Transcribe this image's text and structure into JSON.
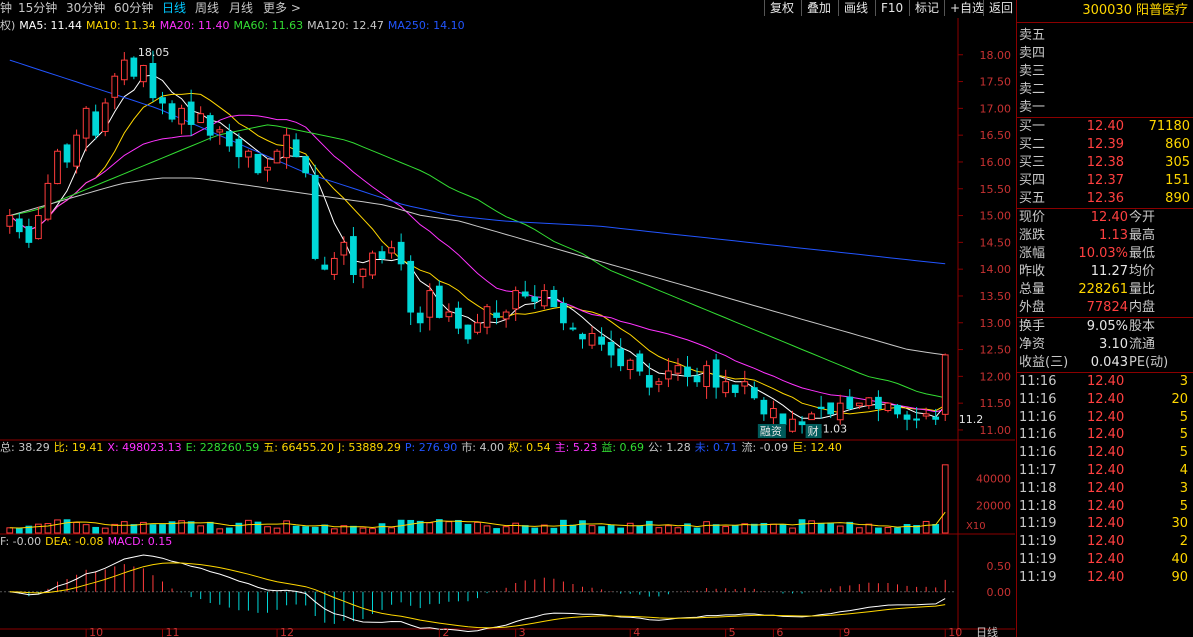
{
  "toolbar": {
    "periods": [
      {
        "label": "钟",
        "active": false
      },
      {
        "label": "15分钟",
        "active": false
      },
      {
        "label": "30分钟",
        "active": false
      },
      {
        "label": "60分钟",
        "active": false
      },
      {
        "label": "日线",
        "active": true
      },
      {
        "label": "周线",
        "active": false
      },
      {
        "label": "月线",
        "active": false
      },
      {
        "label": "更多 >",
        "active": false
      }
    ],
    "buttons": [
      "复权",
      "叠加",
      "画线",
      "F10",
      "标记",
      "+自选",
      "返回"
    ]
  },
  "legend_ma": [
    {
      "text": "权)",
      "color": "#c8c8c8"
    },
    {
      "text": "MA5: 11.44",
      "color": "#ffffff"
    },
    {
      "text": "MA10: 11.34",
      "color": "#ffd700"
    },
    {
      "text": "MA20: 11.40",
      "color": "#ff33ff"
    },
    {
      "text": "MA60: 11.63",
      "color": "#33dd33"
    },
    {
      "text": "MA120: 12.47",
      "color": "#c8c8c8"
    },
    {
      "text": "MA250: 14.10",
      "color": "#2255ff"
    }
  ],
  "legend_vol": [
    {
      "text": "总: 38.29",
      "color": "#c8c8c8"
    },
    {
      "text": "比: 19.41",
      "color": "#ffd700"
    },
    {
      "text": "X: 498023.13",
      "color": "#ff33ff"
    },
    {
      "text": "E: 228260.59",
      "color": "#33dd33"
    },
    {
      "text": "五: 66455.20",
      "color": "#ffd700"
    },
    {
      "text": "J: 53889.29",
      "color": "#ffd700"
    },
    {
      "text": "P: 276.90",
      "color": "#2255ff"
    },
    {
      "text": "市: 4.00",
      "color": "#c8c8c8"
    },
    {
      "text": "权: 0.54",
      "color": "#ffd700"
    },
    {
      "text": "主: 5.23",
      "color": "#ff33ff"
    },
    {
      "text": "益: 0.69",
      "color": "#33dd33"
    },
    {
      "text": "公: 1.28",
      "color": "#c8c8c8"
    },
    {
      "text": "未: 0.71",
      "color": "#2255ff"
    },
    {
      "text": "流: -0.09",
      "color": "#c8c8c8"
    },
    {
      "text": "巨: 12.40",
      "color": "#ffd700"
    }
  ],
  "legend_macd": [
    {
      "text": "F: -0.00",
      "color": "#c8c8c8"
    },
    {
      "text": "DEA: -0.08",
      "color": "#ffd700"
    },
    {
      "text": "MACD: 0.15",
      "color": "#ff33ff"
    }
  ],
  "chart_data": {
    "type": "candlestick",
    "price_axis": {
      "ticks": [
        "18.00",
        "17.50",
        "17.00",
        "16.50",
        "16.00",
        "15.50",
        "15.00",
        "14.50",
        "14.00",
        "13.50",
        "13.00",
        "12.50",
        "12.00",
        "11.50",
        "11.00"
      ],
      "min": 10.85,
      "max": 18.35
    },
    "volume_axis": {
      "ticks": [
        "40000",
        "20000"
      ],
      "unit": "X10"
    },
    "macd_axis": {
      "ticks": [
        "0.50",
        "0.00"
      ],
      "min": -0.7,
      "max": 0.75
    },
    "month_labels": [
      {
        "label": "10",
        "idx": 8
      },
      {
        "label": "11",
        "idx": 16
      },
      {
        "label": "12",
        "idx": 28
      },
      {
        "label": "2",
        "idx": 45
      },
      {
        "label": "3",
        "idx": 53
      },
      {
        "label": "4",
        "idx": 65
      },
      {
        "label": "5",
        "idx": 75
      },
      {
        "label": "6",
        "idx": 80
      },
      {
        "label": "9",
        "idx": 87
      },
      {
        "label": "10",
        "idx": 98
      }
    ],
    "annotations": [
      {
        "text": "18.05",
        "idx": 13,
        "value": 18.05
      },
      {
        "text": "11.03",
        "idx": 84,
        "value": 11.03
      },
      {
        "text": "11.2",
        "idx": 99,
        "value": 11.2
      },
      {
        "text": "融资",
        "idx": 79
      },
      {
        "text": "财",
        "idx": 84
      }
    ],
    "closes": [
      15.0,
      14.7,
      14.5,
      15.0,
      15.6,
      16.2,
      16.0,
      16.5,
      17.0,
      16.5,
      17.1,
      17.6,
      17.9,
      17.6,
      17.8,
      17.2,
      17.1,
      16.8,
      17.0,
      16.7,
      16.9,
      16.5,
      16.6,
      16.3,
      16.1,
      16.2,
      15.8,
      15.9,
      16.2,
      16.5,
      16.1,
      15.8,
      14.2,
      14.0,
      14.2,
      14.5,
      13.9,
      14.0,
      14.3,
      14.2,
      14.4,
      14.1,
      13.2,
      13.0,
      13.6,
      13.1,
      13.2,
      12.9,
      12.7,
      13.0,
      13.3,
      13.1,
      13.2,
      13.6,
      13.5,
      13.4,
      13.6,
      13.3,
      13.0,
      12.9,
      12.7,
      12.8,
      12.6,
      12.4,
      12.2,
      12.3,
      12.1,
      11.8,
      11.9,
      12.1,
      12.2,
      12.0,
      11.9,
      12.2,
      11.8,
      11.9,
      11.7,
      11.9,
      11.6,
      11.3,
      11.4,
      11.1,
      11.2,
      11.1,
      11.3,
      11.4,
      11.3,
      11.5,
      11.4,
      11.5,
      11.6,
      11.4,
      11.5,
      11.3,
      11.2,
      11.2,
      11.3,
      11.2,
      12.4
    ],
    "ma": [
      {
        "name": "MA5",
        "color": "#ffffff"
      },
      {
        "name": "MA10",
        "color": "#ffd700"
      },
      {
        "name": "MA20",
        "color": "#ff33ff"
      },
      {
        "name": "MA60",
        "color": "#33dd33",
        "values": [
          15.0,
          15.1,
          15.3,
          15.5,
          15.7,
          15.9,
          16.1,
          16.3,
          16.5,
          16.6,
          16.7,
          16.6,
          16.5,
          16.4,
          16.2,
          16.0,
          15.8,
          15.5,
          15.3,
          15.0,
          14.8,
          14.5,
          14.3,
          14.0,
          13.8,
          13.6,
          13.4,
          13.2,
          13.0,
          12.8,
          12.6,
          12.4,
          12.2,
          12.0,
          11.9,
          11.7,
          11.6
        ]
      },
      {
        "name": "MA120",
        "color": "#c8c8c8",
        "values": [
          15.0,
          15.2,
          15.4,
          15.6,
          15.7,
          15.7,
          15.6,
          15.5,
          15.4,
          15.3,
          15.2,
          15.0,
          14.9,
          14.7,
          14.5,
          14.3,
          14.1,
          13.9,
          13.7,
          13.5,
          13.3,
          13.1,
          12.9,
          12.7,
          12.5,
          12.4
        ]
      },
      {
        "name": "MA250",
        "color": "#2255ff",
        "values": [
          17.9,
          17.6,
          17.3,
          17.0,
          16.6,
          16.2,
          15.8,
          15.5,
          15.2,
          15.0,
          14.9,
          14.85,
          14.8,
          14.7,
          14.6,
          14.5,
          14.4,
          14.3,
          14.2,
          14.1
        ]
      }
    ]
  },
  "stock": {
    "code": "300030",
    "name": "阳普医疗"
  },
  "order_book": {
    "asks": [
      {
        "label": "卖五",
        "price": "",
        "vol": ""
      },
      {
        "label": "卖四",
        "price": "",
        "vol": ""
      },
      {
        "label": "卖三",
        "price": "",
        "vol": ""
      },
      {
        "label": "卖二",
        "price": "",
        "vol": ""
      },
      {
        "label": "卖一",
        "price": "",
        "vol": ""
      }
    ],
    "bids": [
      {
        "label": "买一",
        "price": "12.40",
        "vol": "71180"
      },
      {
        "label": "买二",
        "price": "12.39",
        "vol": "860"
      },
      {
        "label": "买三",
        "price": "12.38",
        "vol": "305"
      },
      {
        "label": "买四",
        "price": "12.37",
        "vol": "151"
      },
      {
        "label": "买五",
        "price": "12.36",
        "vol": "890"
      }
    ]
  },
  "quote": [
    {
      "label": "现价",
      "value": "12.40",
      "color": "#ff4040",
      "label2": "今开"
    },
    {
      "label": "涨跌",
      "value": "1.13",
      "color": "#ff4040",
      "label2": "最高"
    },
    {
      "label": "涨幅",
      "value": "10.03%",
      "color": "#ff4040",
      "label2": "最低"
    },
    {
      "label": "昨收",
      "value": "11.27",
      "color": "#e6e6e6",
      "label2": "均价"
    },
    {
      "label": "总量",
      "value": "228261",
      "color": "#ffd700",
      "label2": "量比"
    },
    {
      "label": "外盘",
      "value": "77824",
      "color": "#ff4040",
      "label2": "内盘"
    }
  ],
  "fundamentals": [
    {
      "label": "换手",
      "value": "9.05%",
      "label2": "股本"
    },
    {
      "label": "净资",
      "value": "3.10",
      "label2": "流通"
    },
    {
      "label": "收益(三)",
      "value": "0.043",
      "label2": "PE(动)"
    }
  ],
  "ticks": [
    {
      "time": "11:16",
      "price": "12.40",
      "vol": "3"
    },
    {
      "time": "11:16",
      "price": "12.40",
      "vol": "20"
    },
    {
      "time": "11:16",
      "price": "12.40",
      "vol": "5"
    },
    {
      "time": "11:16",
      "price": "12.40",
      "vol": "5"
    },
    {
      "time": "11:16",
      "price": "12.40",
      "vol": "5"
    },
    {
      "time": "11:17",
      "price": "12.40",
      "vol": "4"
    },
    {
      "time": "11:18",
      "price": "12.40",
      "vol": "3"
    },
    {
      "time": "11:18",
      "price": "12.40",
      "vol": "5"
    },
    {
      "time": "11:19",
      "price": "12.40",
      "vol": "30"
    },
    {
      "time": "11:19",
      "price": "12.40",
      "vol": "2"
    },
    {
      "time": "11:19",
      "price": "12.40",
      "vol": "40"
    },
    {
      "time": "11:19",
      "price": "12.40",
      "vol": "90"
    }
  ],
  "bottom_label": "日线"
}
